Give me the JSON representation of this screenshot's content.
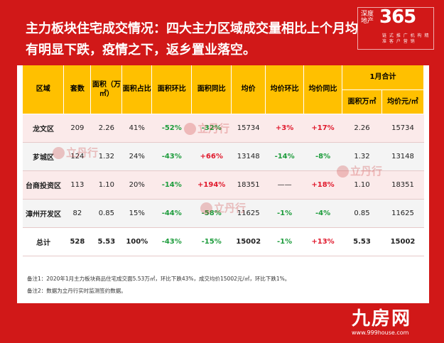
{
  "title": "主力板块住宅成交情况：四大主力区域成交量相比上个月均有明显下跌，疫情之下，返乡置业落空。",
  "logo": {
    "brand": "深度地产",
    "num": "365",
    "sub": "链 式 推 广 机 构 精 准 客 户 营 销"
  },
  "table": {
    "headers": {
      "region": "区域",
      "units": "套数",
      "area": "面积（万㎡）",
      "area_ratio": "面积占比",
      "area_mom": "面积环比",
      "area_yoy": "面积同比",
      "price": "均价",
      "price_mom": "均价环比",
      "price_yoy": "均价同比",
      "jan_total": "1月合计",
      "jan_area": "面积万㎡",
      "jan_price": "均价元/㎡"
    },
    "rows": [
      {
        "region": "龙文区",
        "units": "209",
        "area": "2.26",
        "area_ratio": "41%",
        "area_mom": "-52%",
        "area_yoy": "-32%",
        "price": "15734",
        "price_mom": "+3%",
        "price_yoy": "+17%",
        "jan_area": "2.26",
        "jan_price": "15734"
      },
      {
        "region": "芗城区",
        "units": "124",
        "area": "1.32",
        "area_ratio": "24%",
        "area_mom": "-43%",
        "area_yoy": "+66%",
        "price": "13148",
        "price_mom": "-14%",
        "price_yoy": "-8%",
        "jan_area": "1.32",
        "jan_price": "13148"
      },
      {
        "region": "台商投资区",
        "units": "113",
        "area": "1.10",
        "area_ratio": "20%",
        "area_mom": "-14%",
        "area_yoy": "+194%",
        "price": "18351",
        "price_mom": "——",
        "price_yoy": "+18%",
        "jan_area": "1.10",
        "jan_price": "18351"
      },
      {
        "region": "漳州开发区",
        "units": "82",
        "area": "0.85",
        "area_ratio": "15%",
        "area_mom": "-44%",
        "area_yoy": "-58%",
        "price": "11625",
        "price_mom": "-1%",
        "price_yoy": "-4%",
        "jan_area": "0.85",
        "jan_price": "11625"
      }
    ],
    "total": {
      "region": "总计",
      "units": "528",
      "area": "5.53",
      "area_ratio": "100%",
      "area_mom": "-43%",
      "area_yoy": "-15%",
      "price": "15002",
      "price_mom": "-1%",
      "price_yoy": "+13%",
      "jan_area": "5.53",
      "jan_price": "15002"
    }
  },
  "notes": {
    "note1": "备注1：2020年1月主力板块商品住宅成交面5.53万㎡，环比下跌43%，成交均价15002元/㎡，环比下跌1%。",
    "note2": "备注2：数据为立丹行实时监测签约数据。"
  },
  "watermark": {
    "text": "立丹行"
  },
  "footer": {
    "brand": "九房网",
    "url": "www.999house.com"
  },
  "colors": {
    "background": "#d11818",
    "header": "#ffc000",
    "negative": "#1d9c3c",
    "positive": "#e0192c"
  }
}
